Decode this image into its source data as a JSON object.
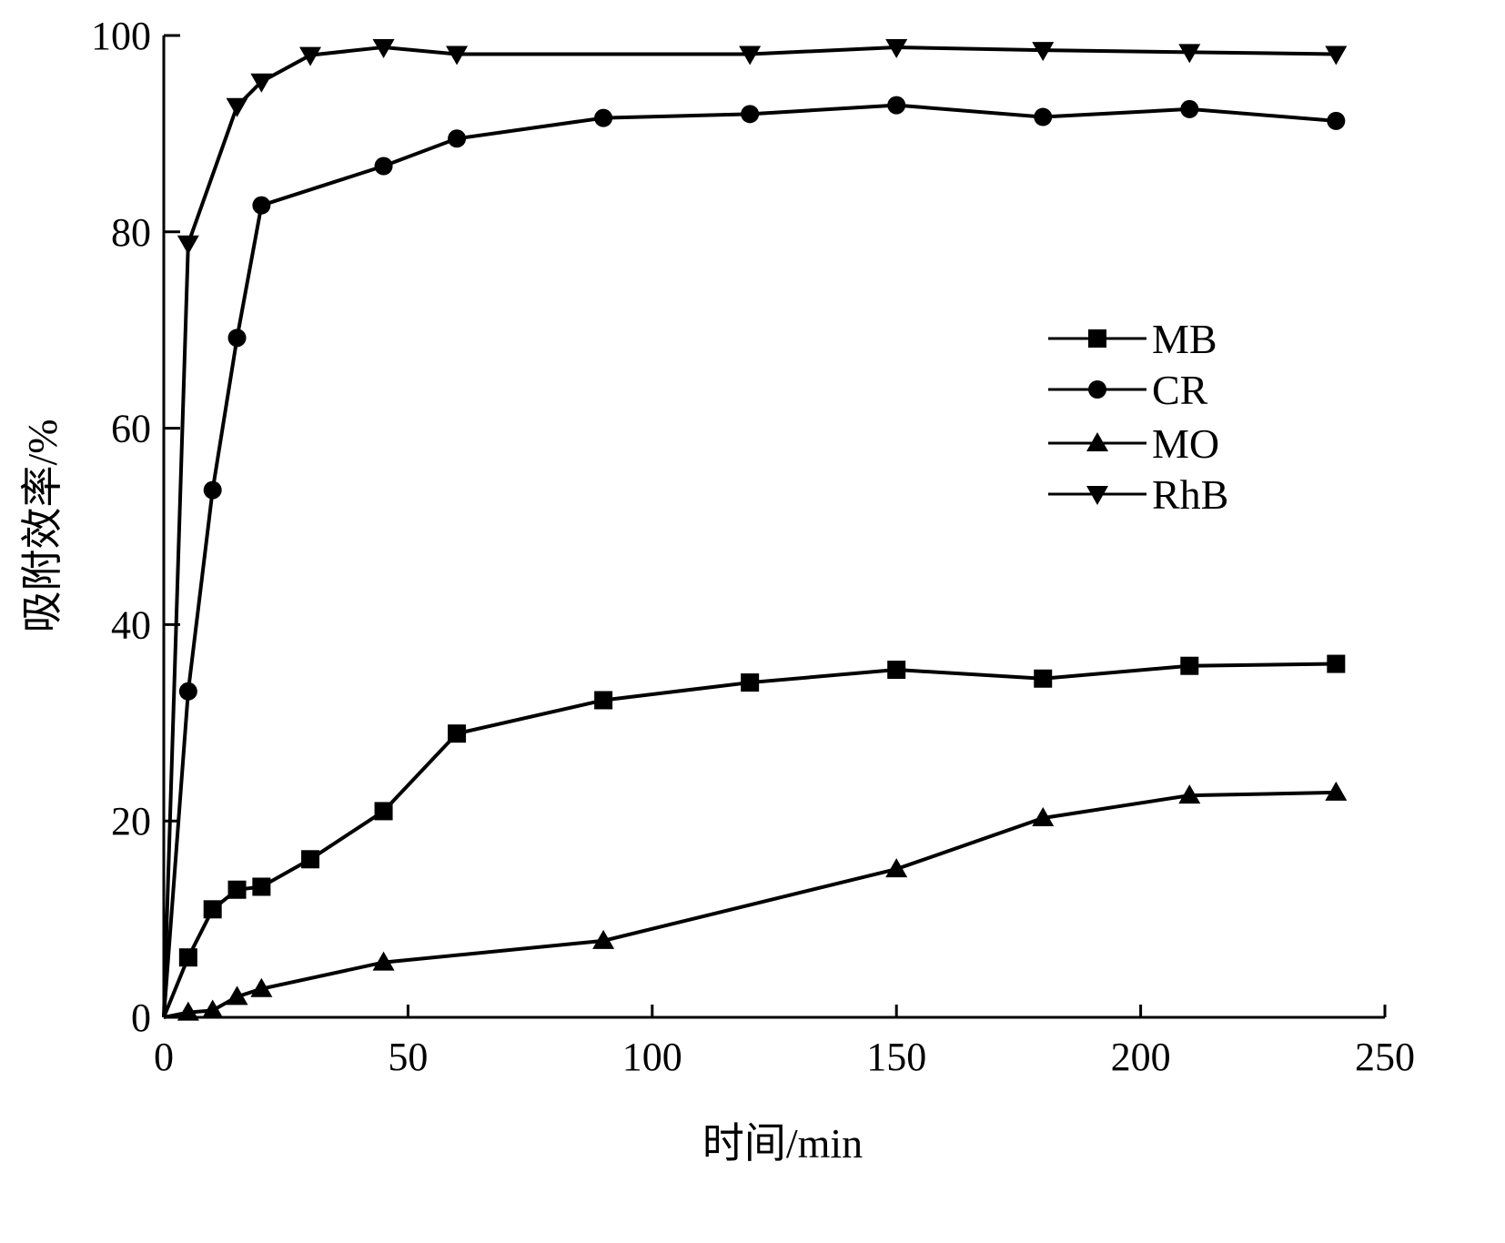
{
  "chart_data": {
    "type": "line",
    "title": "",
    "xlabel": "时间/min",
    "ylabel": "吸附效率/%",
    "xlim": [
      0,
      250
    ],
    "ylim": [
      0,
      100
    ],
    "xticks": [
      0,
      50,
      100,
      150,
      200,
      250
    ],
    "yticks": [
      0,
      20,
      40,
      60,
      80,
      100
    ],
    "grid": false,
    "legend_position": "center-right",
    "series": [
      {
        "name": "MB",
        "marker": "square",
        "x": [
          0,
          5,
          10,
          15,
          20,
          30,
          45,
          60,
          90,
          120,
          150,
          180,
          210,
          240
        ],
        "y": [
          0,
          6.1,
          11.0,
          13.0,
          13.3,
          16.1,
          21.0,
          28.9,
          32.3,
          34.1,
          35.4,
          34.5,
          35.8,
          36.0
        ]
      },
      {
        "name": "CR",
        "marker": "circle",
        "x": [
          0,
          5,
          10,
          15,
          20,
          45,
          60,
          90,
          120,
          150,
          180,
          210,
          240
        ],
        "y": [
          0,
          33.2,
          53.7,
          69.2,
          82.7,
          86.7,
          89.5,
          91.6,
          92.0,
          92.9,
          91.7,
          92.5,
          91.3
        ]
      },
      {
        "name": "MO",
        "marker": "triangle-up",
        "x": [
          0,
          5,
          10,
          15,
          20,
          45,
          90,
          150,
          180,
          210,
          240
        ],
        "y": [
          0,
          0.5,
          0.7,
          2.1,
          2.9,
          5.6,
          7.8,
          15.1,
          20.3,
          22.6,
          22.9
        ]
      },
      {
        "name": "RhB",
        "marker": "triangle-down",
        "x": [
          0,
          5,
          15,
          20,
          30,
          45,
          60,
          120,
          150,
          180,
          210,
          240
        ],
        "y": [
          0,
          78.8,
          92.8,
          95.3,
          98.0,
          98.8,
          98.1,
          98.1,
          98.8,
          98.5,
          98.3,
          98.1
        ]
      }
    ]
  }
}
